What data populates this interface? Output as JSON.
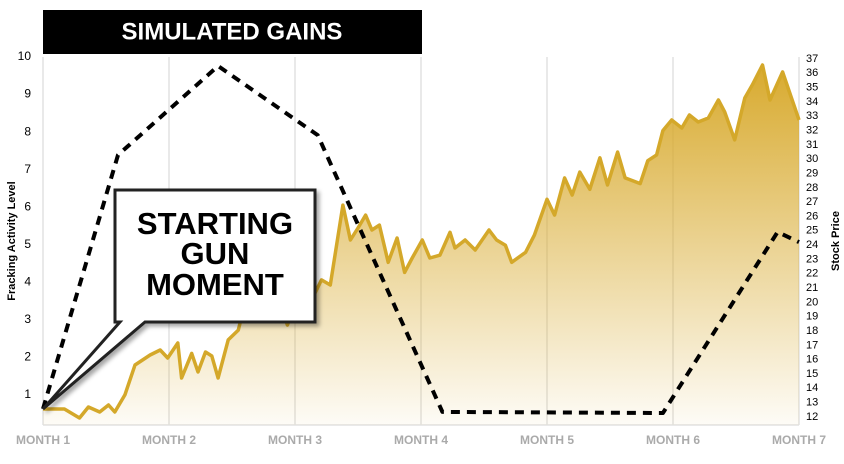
{
  "chart_data": {
    "type": "line",
    "title": "SIMULATED GAINS",
    "annotation": [
      "STARTING",
      "GUN",
      "MOMENT"
    ],
    "y_label": "Fracking Activity Level",
    "y2_label": "Stock Price",
    "xlim": [
      1,
      7
    ],
    "xticks": [
      {
        "value": 1,
        "label": "MONTH 1"
      },
      {
        "value": 2,
        "label": "MONTH 2"
      },
      {
        "value": 3,
        "label": "MONTH 3"
      },
      {
        "value": 4,
        "label": "MONTH 4"
      },
      {
        "value": 5,
        "label": "MONTH 5"
      },
      {
        "value": 6,
        "label": "MONTH 6"
      },
      {
        "value": 7,
        "label": "MONTH 7"
      }
    ],
    "ylim": [
      0.2,
      10
    ],
    "yticks": [
      1,
      2,
      3,
      4,
      5,
      6,
      7,
      8,
      9,
      10
    ],
    "y2lim": [
      11.44,
      37.14
    ],
    "y2ticks": [
      12,
      13,
      14,
      15,
      16,
      17,
      18,
      19,
      20,
      21,
      22,
      23,
      24,
      25,
      26,
      27,
      28,
      29,
      30,
      31,
      32,
      33,
      34,
      35,
      36,
      37
    ],
    "grid": "x",
    "series": [
      {
        "color": "#000000",
        "style": "dashed",
        "x": [
          1,
          1.595,
          2.39,
          3.18,
          4.17,
          5.92,
          6.83,
          7
        ],
        "values": [
          0.63,
          7.39,
          9.76,
          7.92,
          0.55,
          0.52,
          5.34,
          5.07
        ]
      },
      {
        "color": "#d4a82a",
        "style": "area",
        "axis": "y2",
        "x": [
          1,
          1.17,
          1.29,
          1.36,
          1.45,
          1.52,
          1.57,
          1.65,
          1.73,
          1.85,
          1.93,
          1.99,
          2.07,
          2.1,
          2.18,
          2.23,
          2.29,
          2.34,
          2.39,
          2.47,
          2.55,
          2.59,
          2.68,
          2.76,
          2.87,
          2.94,
          3.04,
          3.12,
          3.21,
          3.28,
          3.38,
          3.44,
          3.5,
          3.56,
          3.61,
          3.67,
          3.74,
          3.81,
          3.87,
          3.93,
          4.01,
          4.07,
          4.15,
          4.23,
          4.27,
          4.35,
          4.43,
          4.54,
          4.6,
          4.67,
          4.72,
          4.83,
          4.9,
          5.0,
          5.06,
          5.14,
          5.2,
          5.26,
          5.34,
          5.42,
          5.48,
          5.56,
          5.62,
          5.74,
          5.8,
          5.87,
          5.92,
          5.99,
          6.07,
          6.13,
          6.2,
          6.28,
          6.36,
          6.41,
          6.49,
          6.57,
          6.63,
          6.71,
          6.77,
          6.87,
          7.0
        ],
        "values": [
          12.56,
          12.56,
          11.93,
          12.7,
          12.35,
          12.84,
          12.35,
          13.54,
          15.63,
          16.33,
          16.68,
          16.12,
          17.17,
          14.72,
          16.44,
          15.14,
          16.54,
          16.26,
          14.72,
          17.38,
          18.07,
          19.47,
          20.45,
          19.47,
          20.17,
          18.42,
          20.73,
          19.96,
          21.57,
          21.22,
          26.8,
          24.36,
          25.2,
          26.1,
          25.06,
          25.4,
          22.8,
          24.5,
          22.1,
          23.1,
          24.36,
          23.1,
          23.3,
          24.9,
          23.8,
          24.36,
          23.66,
          25.06,
          24.36,
          24.0,
          22.8,
          23.5,
          24.7,
          27.2,
          26.1,
          28.7,
          27.5,
          29.1,
          27.9,
          30.1,
          28.2,
          30.5,
          28.7,
          28.3,
          29.9,
          30.3,
          32.0,
          32.74,
          32.18,
          33.09,
          32.6,
          32.88,
          34.14,
          33.3,
          31.35,
          34.28,
          35.2,
          36.58,
          34.14,
          36.09,
          32.74
        ]
      }
    ]
  }
}
